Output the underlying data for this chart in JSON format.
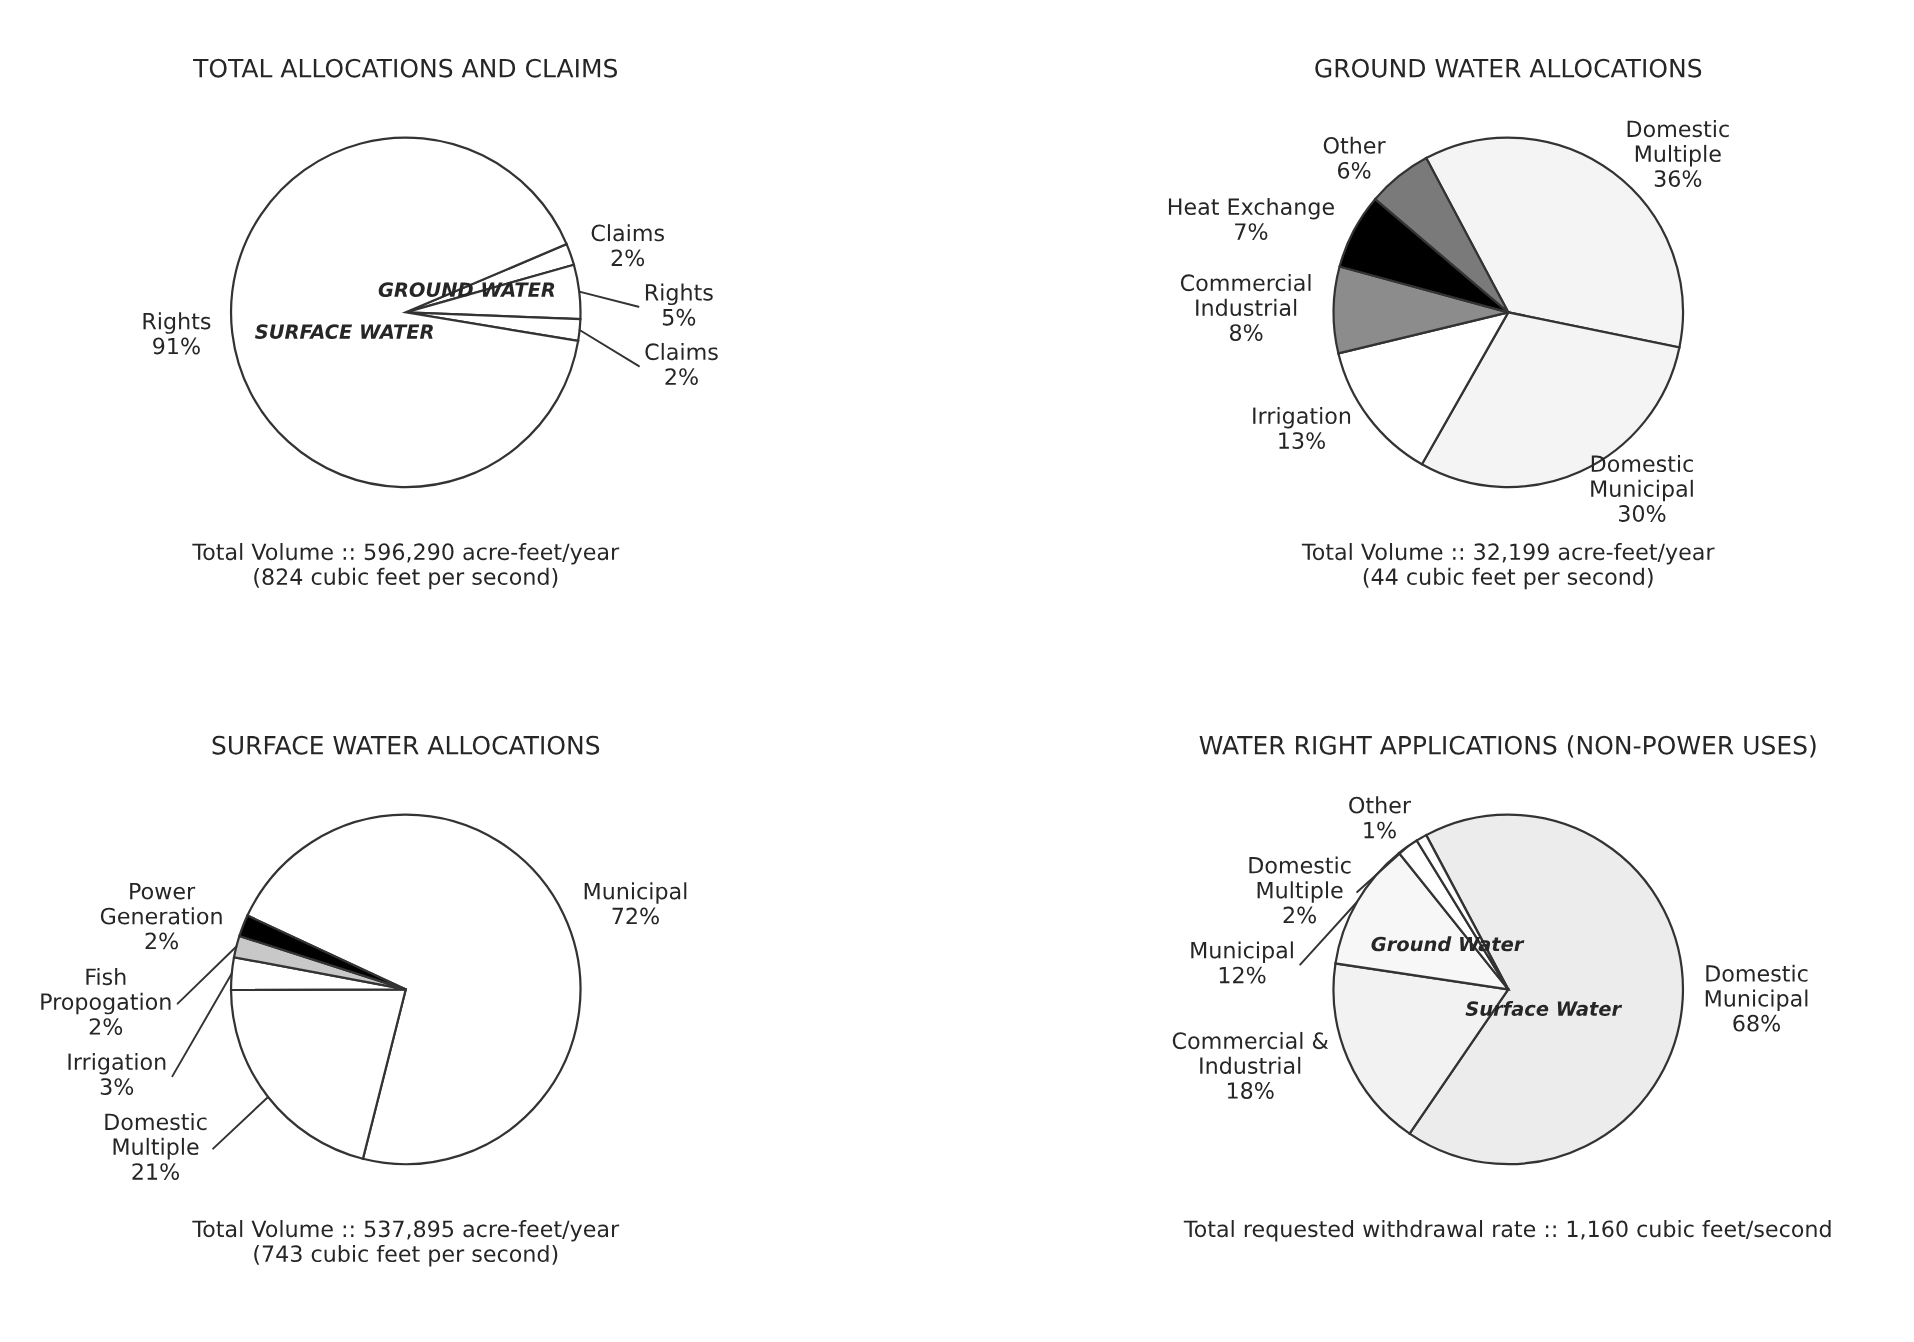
{
  "chart_data": [
    {
      "type": "pie",
      "title": "TOTAL ALLOCATIONS AND CLAIMS",
      "categories": [
        "Claims",
        "Rights",
        "Claims",
        "Rights"
      ],
      "values": [
        2,
        5,
        2,
        91
      ],
      "value_labels": [
        "2%",
        "5%",
        "2%",
        "91%"
      ],
      "colors": [
        "#ffffff",
        "#ffffff",
        "#ffffff",
        "#ffffff"
      ],
      "annotations": [
        "GROUND WATER",
        "SURFACE WATER",
        "Total Volume :: 596,290 acre-feet/year\n(824 cubic feet per second)"
      ]
    },
    {
      "type": "pie",
      "title": "GROUND WATER ALLOCATIONS",
      "categories": [
        "Domestic\nMultiple",
        "Domestic\nMunicipal",
        "Irrigation",
        "Commercial\nIndustrial",
        "Heat Exchange",
        "Other"
      ],
      "values": [
        36,
        30,
        13,
        8,
        7,
        6
      ],
      "value_labels": [
        "36%",
        "30%",
        "13%",
        "8%",
        "7%",
        "6%"
      ],
      "colors": [
        "#f4f4f4",
        "#f4f4f4",
        "#ffffff",
        "#8c8c8c",
        "#000000",
        "#7a7a7a"
      ],
      "annotations": [
        "Total Volume :: 32,199 acre-feet/year\n(44 cubic feet per second)"
      ]
    },
    {
      "type": "pie",
      "title": "SURFACE WATER ALLOCATIONS",
      "categories": [
        "Municipal",
        "Domestic\nMultiple",
        "Irrigation",
        "Fish\nPropogation",
        "Power\nGeneration"
      ],
      "values": [
        72,
        21,
        3,
        2,
        2
      ],
      "value_labels": [
        "72%",
        "21%",
        "3%",
        "2%",
        "2%"
      ],
      "colors": [
        "#ffffff",
        "#ffffff",
        "#ffffff",
        "#c8c8c8",
        "#000000"
      ],
      "annotations": [
        "Total Volume :: 537,895 acre-feet/year\n(743 cubic feet per second)"
      ]
    },
    {
      "type": "pie",
      "title": "WATER RIGHT APPLICATIONS (NON-POWER USES)",
      "categories": [
        "Domestic\nMunicipal",
        "Commercial &\nIndustrial",
        "Municipal",
        "Domestic\nMultiple",
        "Other"
      ],
      "values": [
        68,
        18,
        12,
        2,
        1
      ],
      "value_labels": [
        "68%",
        "18%",
        "12%",
        "2%",
        "1%"
      ],
      "colors": [
        "#ececec",
        "#f2f2f2",
        "#f7f7f7",
        "#ffffff",
        "#ffffff"
      ],
      "annotations": [
        "Surface Water",
        "Ground Water",
        "Total requested withdrawal rate :: 1,160 cubic feet/second"
      ]
    }
  ]
}
